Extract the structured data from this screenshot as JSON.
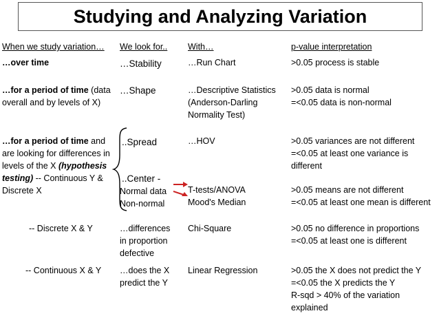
{
  "title": "Studying and Analyzing Variation",
  "headers": {
    "col1": "When we study variation…",
    "col2": "We look for..",
    "col3": "With…",
    "col4": "p-value interpretation"
  },
  "rows": {
    "over_time": {
      "c1": "…over time",
      "c2": "…Stability",
      "c3": "…Run Chart",
      "c4": ">0.05 process is stable"
    },
    "period": {
      "c1_a": "…for a period of time",
      "c1_b": " (data",
      "c1_c": "overall and by levels of X)",
      "c2": "…Shape",
      "c3_a": "…Descriptive Statistics",
      "c3_b": "(Anderson-Darling",
      "c3_c": "Normality Test)",
      "c4_a": ">0.05 data is normal",
      "c4_b": "=<0.05 data is non-normal"
    },
    "differences": {
      "c1_a": "…for a period of time",
      "c1_b": " and",
      "c1_c": "are looking for differences in",
      "c1_d": "levels of the X ",
      "c1_e": "(hypothesis",
      "c1_f": "testing)",
      "c1_g": " -- Continuous Y &",
      "c1_h": "Discrete X",
      "spread": "..Spread",
      "hov": "…HOV",
      "spread_p_a": ">0.05 variances are not different",
      "spread_p_b": "=<0.05 at least one variance is",
      "spread_p_c": "different",
      "center": "..Center -",
      "normal": "Normal data",
      "nonnormal": "Non-normal",
      "ttest": "T-tests/ANOVA",
      "mood": "Mood's Median",
      "center_p_a": ">0.05 means are not different",
      "center_p_b": "=<0.05 at least one mean is different"
    },
    "discrete": {
      "c1": "-- Discrete X & Y",
      "c2_a": "…differences",
      "c2_b": "in proportion",
      "c2_c": "defective",
      "c3": "Chi-Square",
      "c4_a": ">0.05 no difference in proportions",
      "c4_b": "=<0.05 at least one is different"
    },
    "continuous": {
      "c1": "-- Continuous X & Y",
      "c2_a": "…does the X",
      "c2_b": "predict the Y",
      "c3": "Linear Regression",
      "c4_a": ">0.05 the X does not predict the Y",
      "c4_b": "=<0.05 the X predicts the Y",
      "c4_c": "R-sqd > 40% of the variation",
      "c4_d": "explained"
    }
  },
  "colors": {
    "arrow": "#cc2222"
  }
}
